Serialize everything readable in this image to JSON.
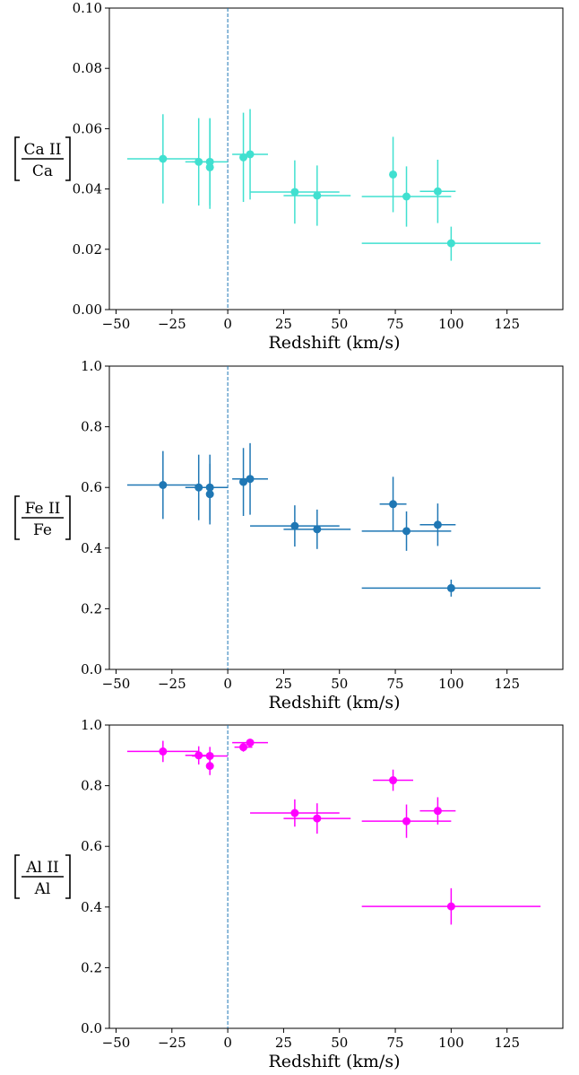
{
  "chart_data": [
    {
      "type": "scatter",
      "xlabel": "Redshift (km/s)",
      "ylabel": {
        "numerator": "Ca II",
        "denominator": "Ca"
      },
      "xlim": [
        -53,
        150
      ],
      "ylim": [
        0.0,
        0.1
      ],
      "xticks": [
        -50,
        -25,
        0,
        25,
        50,
        75,
        100,
        125
      ],
      "xtick_labels": [
        "−50",
        "−25",
        "0",
        "25",
        "50",
        "75",
        "100",
        "125"
      ],
      "yticks": [
        0.0,
        0.02,
        0.04,
        0.06,
        0.08,
        0.1
      ],
      "ytick_labels": [
        "0.00",
        "0.02",
        "0.04",
        "0.06",
        "0.08",
        "0.10"
      ],
      "color": "#40e0d0",
      "reference_line_x": 0,
      "reference_line_color": "#1f77b4",
      "grid": false,
      "series": [
        {
          "points": [
            {
              "x": -29,
              "y": 0.05,
              "xerr": [
                16,
                16
              ],
              "yerr": [
                0.0148,
                0.0148
              ]
            },
            {
              "x": -13,
              "y": 0.049,
              "xerr": [
                6,
                6
              ],
              "yerr": [
                0.0145,
                0.0145
              ]
            },
            {
              "x": -8,
              "y": 0.049,
              "xerr": [
                8,
                8
              ],
              "yerr": [
                0.0145,
                0.0145
              ]
            },
            {
              "x": -8,
              "y": 0.0472,
              "xerr": [
                0,
                0
              ],
              "yerr": [
                0.0138,
                0.016
              ]
            },
            {
              "x": 7,
              "y": 0.0505,
              "xerr": [
                0,
                0
              ],
              "yerr": [
                0.0148,
                0.0148
              ]
            },
            {
              "x": 10,
              "y": 0.0515,
              "xerr": [
                8,
                8
              ],
              "yerr": [
                0.015,
                0.015
              ]
            },
            {
              "x": 30,
              "y": 0.039,
              "xerr": [
                20,
                20
              ],
              "yerr": [
                0.0105,
                0.0105
              ]
            },
            {
              "x": 40,
              "y": 0.0378,
              "xerr": [
                15,
                15
              ],
              "yerr": [
                0.01,
                0.01
              ]
            },
            {
              "x": 74,
              "y": 0.0448,
              "xerr": [
                0,
                0
              ],
              "yerr": [
                0.0125,
                0.0125
              ]
            },
            {
              "x": 80,
              "y": 0.0375,
              "xerr": [
                20,
                20
              ],
              "yerr": [
                0.01,
                0.01
              ]
            },
            {
              "x": 94,
              "y": 0.0392,
              "xerr": [
                8,
                8
              ],
              "yerr": [
                0.0105,
                0.0105
              ]
            },
            {
              "x": 100,
              "y": 0.022,
              "xerr": [
                40,
                40
              ],
              "yerr": [
                0.0058,
                0.0055
              ]
            }
          ]
        }
      ]
    },
    {
      "type": "scatter",
      "xlabel": "Redshift (km/s)",
      "ylabel": {
        "numerator": "Fe II",
        "denominator": "Fe"
      },
      "xlim": [
        -53,
        150
      ],
      "ylim": [
        0.0,
        1.0
      ],
      "xticks": [
        -50,
        -25,
        0,
        25,
        50,
        75,
        100,
        125
      ],
      "xtick_labels": [
        "−50",
        "−25",
        "0",
        "25",
        "50",
        "75",
        "100",
        "125"
      ],
      "yticks": [
        0.0,
        0.2,
        0.4,
        0.6,
        0.8,
        1.0
      ],
      "ytick_labels": [
        "0.0",
        "0.2",
        "0.4",
        "0.6",
        "0.8",
        "1.0"
      ],
      "color": "#1f77b4",
      "reference_line_x": 0,
      "reference_line_color": "#1f77b4",
      "grid": false,
      "series": [
        {
          "points": [
            {
              "x": -29,
              "y": 0.608,
              "xerr": [
                16,
                16
              ],
              "yerr": [
                0.112,
                0.112
              ]
            },
            {
              "x": -13,
              "y": 0.6,
              "xerr": [
                6,
                6
              ],
              "yerr": [
                0.108,
                0.108
              ]
            },
            {
              "x": -8,
              "y": 0.6,
              "xerr": [
                8,
                8
              ],
              "yerr": [
                0.108,
                0.108
              ]
            },
            {
              "x": -8,
              "y": 0.578,
              "xerr": [
                0,
                0
              ],
              "yerr": [
                0.1,
                0.1
              ]
            },
            {
              "x": 7,
              "y": 0.618,
              "xerr": [
                0,
                0
              ],
              "yerr": [
                0.112,
                0.112
              ]
            },
            {
              "x": 10,
              "y": 0.628,
              "xerr": [
                8,
                8
              ],
              "yerr": [
                0.118,
                0.118
              ]
            },
            {
              "x": 30,
              "y": 0.473,
              "xerr": [
                20,
                20
              ],
              "yerr": [
                0.068,
                0.068
              ]
            },
            {
              "x": 40,
              "y": 0.462,
              "xerr": [
                15,
                15
              ],
              "yerr": [
                0.065,
                0.065
              ]
            },
            {
              "x": 74,
              "y": 0.545,
              "xerr": [
                6,
                6
              ],
              "yerr": [
                0.09,
                0.09
              ]
            },
            {
              "x": 80,
              "y": 0.456,
              "xerr": [
                20,
                20
              ],
              "yerr": [
                0.065,
                0.065
              ]
            },
            {
              "x": 94,
              "y": 0.477,
              "xerr": [
                8,
                8
              ],
              "yerr": [
                0.07,
                0.07
              ]
            },
            {
              "x": 100,
              "y": 0.268,
              "xerr": [
                40,
                40
              ],
              "yerr": [
                0.028,
                0.028
              ]
            }
          ]
        }
      ]
    },
    {
      "type": "scatter",
      "xlabel": "Redshift (km/s)",
      "ylabel": {
        "numerator": "Al II",
        "denominator": "Al"
      },
      "xlim": [
        -53,
        150
      ],
      "ylim": [
        0.0,
        1.0
      ],
      "xticks": [
        -50,
        -25,
        0,
        25,
        50,
        75,
        100,
        125
      ],
      "xtick_labels": [
        "−50",
        "−25",
        "0",
        "25",
        "50",
        "75",
        "100",
        "125"
      ],
      "yticks": [
        0.0,
        0.2,
        0.4,
        0.6,
        0.8,
        1.0
      ],
      "ytick_labels": [
        "0.0",
        "0.2",
        "0.4",
        "0.6",
        "0.8",
        "1.0"
      ],
      "color": "#ff00ff",
      "reference_line_x": 0,
      "reference_line_color": "#1f77b4",
      "grid": false,
      "series": [
        {
          "points": [
            {
              "x": -29,
              "y": 0.913,
              "xerr": [
                16,
                16
              ],
              "yerr": [
                0.035,
                0.035
              ]
            },
            {
              "x": -13,
              "y": 0.9,
              "xerr": [
                6,
                6
              ],
              "yerr": [
                0.03,
                0.03
              ]
            },
            {
              "x": -8,
              "y": 0.898,
              "xerr": [
                8,
                8
              ],
              "yerr": [
                0.03,
                0.03
              ]
            },
            {
              "x": -8,
              "y": 0.865,
              "xerr": [
                0,
                0
              ],
              "yerr": [
                0.03,
                0.03
              ]
            },
            {
              "x": 7,
              "y": 0.927,
              "xerr": [
                4,
                4
              ],
              "yerr": [
                0.015,
                0.015
              ]
            },
            {
              "x": 10,
              "y": 0.942,
              "xerr": [
                8,
                8
              ],
              "yerr": [
                0.012,
                0.012
              ]
            },
            {
              "x": 30,
              "y": 0.71,
              "xerr": [
                20,
                20
              ],
              "yerr": [
                0.045,
                0.045
              ]
            },
            {
              "x": 40,
              "y": 0.692,
              "xerr": [
                15,
                15
              ],
              "yerr": [
                0.05,
                0.05
              ]
            },
            {
              "x": 74,
              "y": 0.818,
              "xerr": [
                9,
                9
              ],
              "yerr": [
                0.035,
                0.035
              ]
            },
            {
              "x": 80,
              "y": 0.683,
              "xerr": [
                20,
                20
              ],
              "yerr": [
                0.055,
                0.055
              ]
            },
            {
              "x": 94,
              "y": 0.717,
              "xerr": [
                8,
                8
              ],
              "yerr": [
                0.045,
                0.045
              ]
            },
            {
              "x": 100,
              "y": 0.402,
              "xerr": [
                40,
                40
              ],
              "yerr": [
                0.06,
                0.06
              ]
            }
          ]
        }
      ]
    }
  ]
}
